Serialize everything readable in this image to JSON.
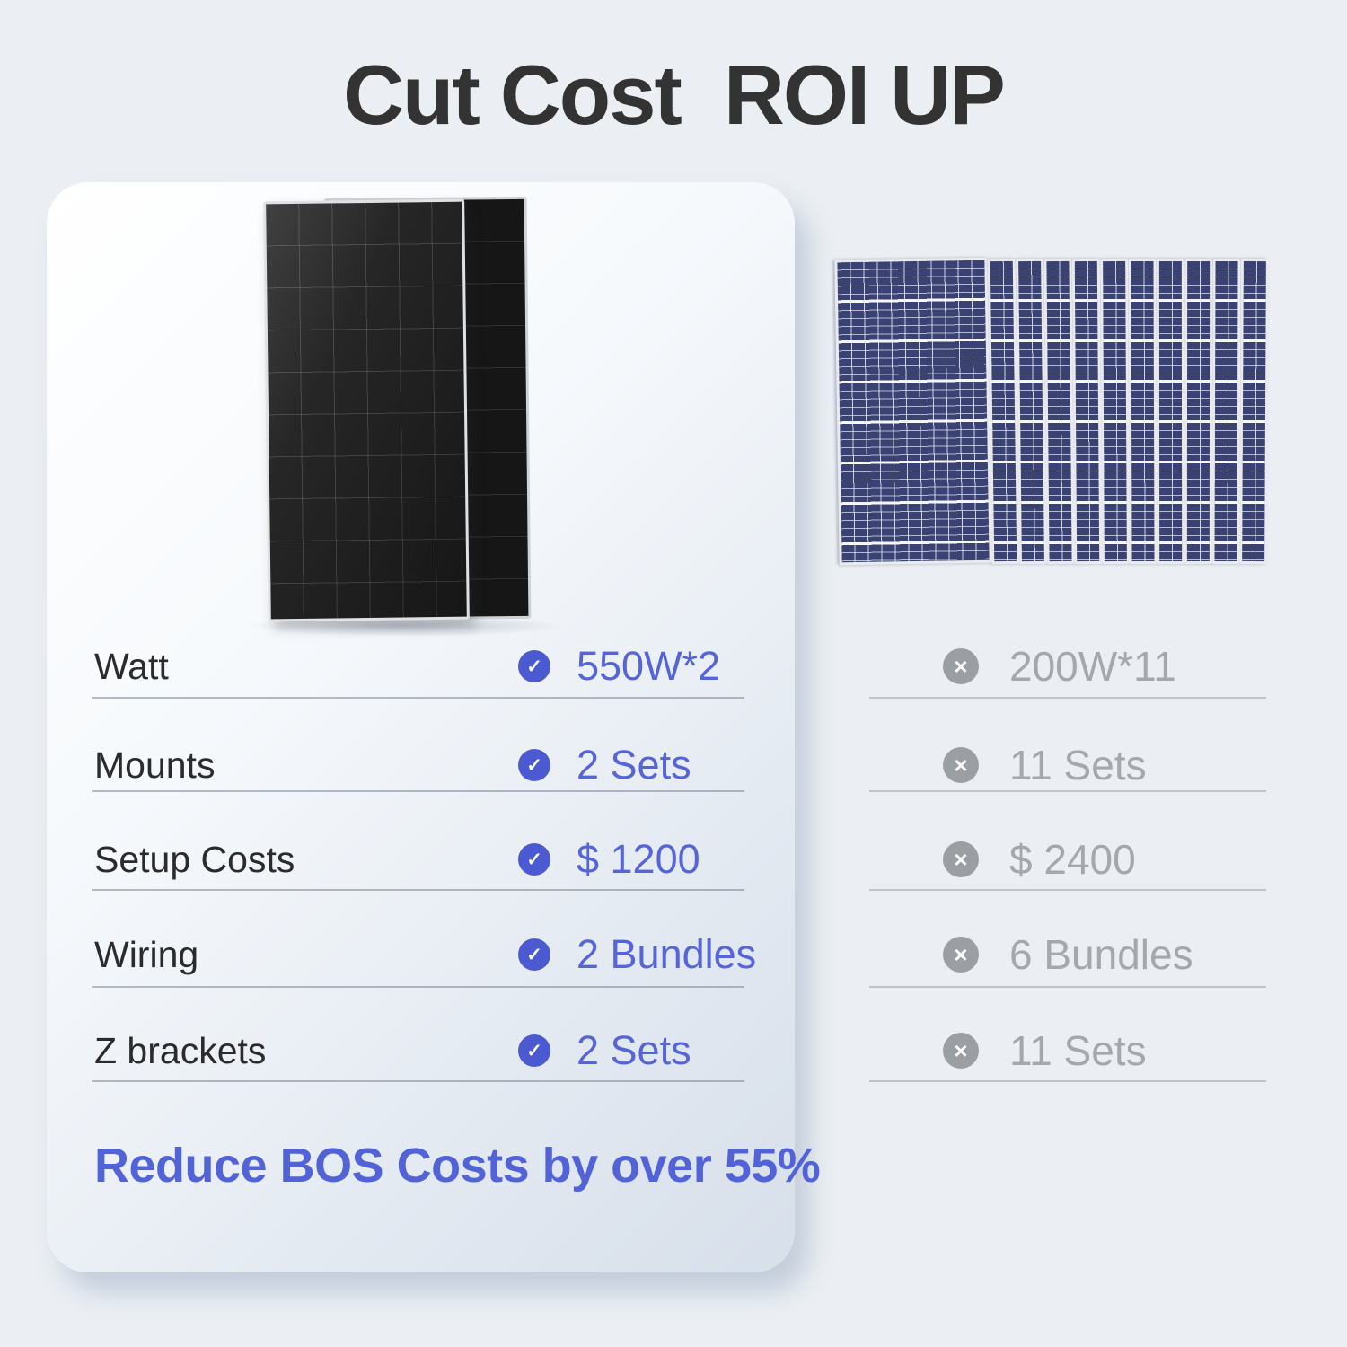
{
  "page": {
    "title": "Cut Cost  ROI UP",
    "background_color": "#ebeff3"
  },
  "comparison": {
    "rows": [
      {
        "label": "Watt",
        "ours": "550W*2",
        "theirs": "200W*11"
      },
      {
        "label": "Mounts",
        "ours": "2 Sets",
        "theirs": "11 Sets"
      },
      {
        "label": "Setup Costs",
        "ours": "$ 1200",
        "theirs": "$ 2400"
      },
      {
        "label": "Wiring",
        "ours": "2 Bundles",
        "theirs": "6 Bundles"
      },
      {
        "label": "Z brackets",
        "ours": "2 Sets",
        "theirs": "11 Sets"
      }
    ],
    "check_glyph": "✓",
    "cross_glyph": "×",
    "ours_panels_count": 2,
    "theirs_panels_count": 11
  },
  "footnote": {
    "text": "Reduce BOS Costs by over ",
    "highlight": "55%"
  },
  "colors": {
    "accent": "#4c5ad1",
    "accent_text": "#5565d8",
    "muted_icon": "#9b9ea3",
    "muted_text": "#a4a7ab",
    "title": "#333333",
    "dark_panel": "#1f1f1f",
    "blue_panel": "#3a4273"
  }
}
